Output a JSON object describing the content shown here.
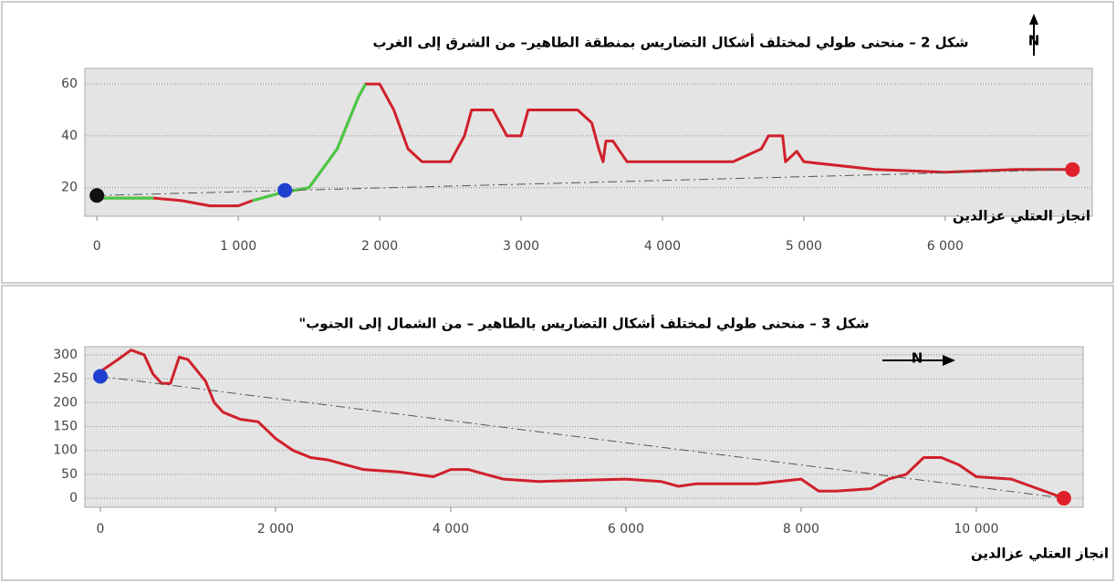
{
  "chart_data": [
    {
      "type": "line",
      "title": "شكل 2 – منحنى طولي لمختلف أشكال التضاريس بمنطقة الطاهير– من الشرق إلى الغرب",
      "annotation": "انجاز العتلي عزالدين",
      "north": "N",
      "north_direction": "up",
      "xlim": [
        -85,
        7040
      ],
      "ylim": [
        9,
        66
      ],
      "xticks": [
        0,
        {
          "value": 1000,
          "label": "1 000"
        },
        {
          "value": 2000,
          "label": "2 000"
        },
        {
          "value": 3000,
          "label": "3 000"
        },
        {
          "value": 4000,
          "label": "4 000"
        },
        {
          "value": 5000,
          "label": "5 000"
        },
        {
          "value": 6000,
          "label": "6 000"
        }
      ],
      "yticks": [
        20,
        40,
        60
      ],
      "grid": true,
      "series": [
        {
          "color": "#d0202a",
          "width": 3,
          "dashed": false,
          "x": [
            0,
            200,
            400,
            600,
            800,
            1000,
            1100,
            1300,
            1500,
            1700,
            1850,
            1900,
            2000,
            2100,
            2200,
            2300,
            2500,
            2600,
            2650,
            2800,
            2850,
            2900,
            3000,
            3050,
            3400,
            3500,
            3550,
            3580,
            3600,
            3650,
            3750,
            4000,
            4500,
            4700,
            4750,
            4850,
            4870,
            4950,
            5000,
            5500,
            6000,
            6500,
            6900
          ],
          "values": [
            16,
            16,
            16,
            15,
            13,
            13,
            15,
            18,
            20,
            35,
            55,
            60,
            60,
            50,
            35,
            30,
            30,
            40,
            50,
            50,
            45,
            40,
            40,
            50,
            50,
            45,
            35,
            30,
            38,
            38,
            30,
            30,
            30,
            35,
            40,
            40,
            30,
            34,
            30,
            27,
            26,
            27,
            27
          ]
        },
        {
          "color": "#44cc44",
          "width": 3,
          "dashed": false,
          "x": [
            0,
            200,
            400,
            500,
            1100,
            1300,
            1500,
            1700,
            1850,
            1900
          ],
          "values": [
            16,
            16,
            16,
            null,
            15,
            18,
            20,
            35,
            55,
            60
          ]
        },
        {
          "color": "#555555",
          "width": 1,
          "dashed": true,
          "x": [
            0,
            6900
          ],
          "values": [
            17,
            27
          ]
        }
      ],
      "points": {
        "x": [
          0,
          1330,
          6900
        ],
        "values": [
          17,
          19,
          27
        ],
        "colors": [
          "#111111",
          "#1f3fd0",
          "#e0202a"
        ]
      }
    },
    {
      "type": "line",
      "title": "شكل 3 – منحنى طولي لمختلف أشكال التضاريس بالطاهير – من الشمال إلى الجنوب\"",
      "annotation": "انجاز العتلي عزالدين",
      "north": "N",
      "north_direction": "right",
      "xlim": [
        -177,
        11220
      ],
      "ylim": [
        -19,
        317
      ],
      "xticks": [
        0,
        {
          "value": 2000,
          "label": "2 000"
        },
        {
          "value": 4000,
          "label": "4 000"
        },
        {
          "value": 6000,
          "label": "6 000"
        },
        {
          "value": 8000,
          "label": "8 000"
        },
        {
          "value": 10000,
          "label": "10 000"
        }
      ],
      "yticks": [
        0,
        50,
        100,
        150,
        200,
        250,
        300
      ],
      "grid": true,
      "series": [
        {
          "color": "#d0202a",
          "width": 3,
          "dashed": false,
          "x": [
            0,
            200,
            350,
            500,
            600,
            700,
            800,
            900,
            1000,
            1200,
            1300,
            1400,
            1600,
            1800,
            2000,
            2200,
            2400,
            2600,
            2800,
            3000,
            3400,
            3600,
            3800,
            4000,
            4200,
            4400,
            4600,
            5000,
            6000,
            6400,
            6600,
            6800,
            7000,
            7500,
            8000,
            8200,
            8400,
            8800,
            9000,
            9200,
            9400,
            9600,
            9800,
            10000,
            10400,
            11000
          ],
          "values": [
            265,
            290,
            310,
            300,
            260,
            240,
            240,
            295,
            290,
            245,
            200,
            180,
            165,
            160,
            125,
            100,
            85,
            80,
            70,
            60,
            55,
            50,
            45,
            60,
            60,
            50,
            40,
            35,
            40,
            35,
            25,
            30,
            30,
            30,
            40,
            15,
            15,
            20,
            40,
            50,
            85,
            85,
            70,
            45,
            40,
            0
          ]
        },
        {
          "color": "#555555",
          "width": 1,
          "dashed": true,
          "x": [
            0,
            11000
          ],
          "values": [
            255,
            0
          ]
        }
      ],
      "points": {
        "x": [
          0,
          11000
        ],
        "values": [
          255,
          0
        ],
        "colors": [
          "#1f3fd0",
          "#e0202a"
        ]
      }
    }
  ]
}
